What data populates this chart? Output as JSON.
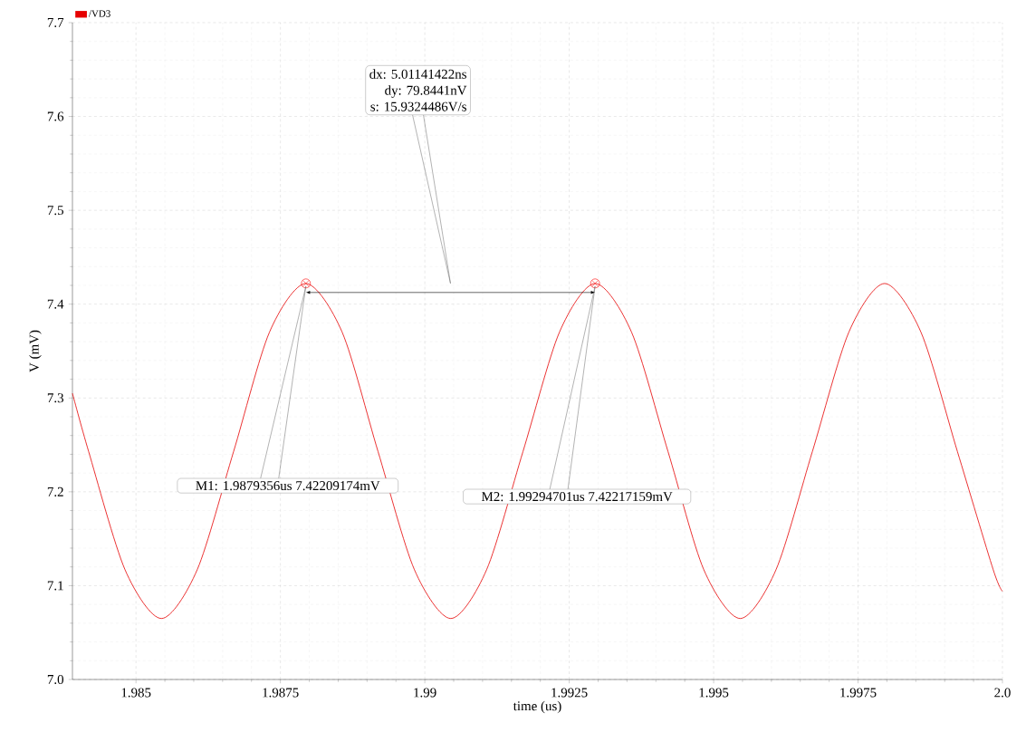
{
  "chart_data": {
    "type": "line",
    "xlabel": "time (us)",
    "ylabel": "V (mV)",
    "xlim": [
      1.9839,
      2.0
    ],
    "ylim": [
      7.0,
      7.7
    ],
    "xticks": [
      1.985,
      1.9875,
      1.99,
      1.9925,
      1.995,
      1.9975,
      {
        "value": 2.0,
        "label": "2.0"
      }
    ],
    "yticks": [
      {
        "value": 7.0,
        "label": "7.0"
      },
      7.1,
      7.2,
      7.3,
      7.4,
      7.5,
      7.6,
      {
        "value": 7.7,
        "label": "7.7"
      }
    ],
    "grid": true,
    "legend": "top left",
    "series": [
      {
        "name": "/VD3",
        "color": "#e60000",
        "x": [
          1.9839,
          1.98418,
          1.98481,
          1.98544,
          1.98606,
          1.98669,
          1.98731,
          1.98794,
          1.98857,
          1.98919,
          1.98982,
          1.99045,
          1.99107,
          1.9917,
          1.99233,
          1.99295,
          1.99358,
          1.99421,
          1.99483,
          1.99546,
          1.99608,
          1.99671,
          1.99734,
          1.99796,
          1.99859,
          1.99922,
          1.99984,
          2.0
        ],
        "values": [
          7.305,
          7.243,
          7.117,
          7.065,
          7.117,
          7.243,
          7.37,
          7.422,
          7.37,
          7.243,
          7.117,
          7.065,
          7.117,
          7.243,
          7.37,
          7.422,
          7.37,
          7.243,
          7.117,
          7.065,
          7.117,
          7.243,
          7.37,
          7.422,
          7.37,
          7.243,
          7.117,
          7.094
        ]
      }
    ],
    "annotations": [
      "M1: 1.9879356us 7.42209174mV",
      "M2: 1.99294701us 7.42217159mV",
      "dx: 5.01141422ns",
      "dy: 79.8441nV",
      "s: 15.9324486V/s"
    ]
  }
}
